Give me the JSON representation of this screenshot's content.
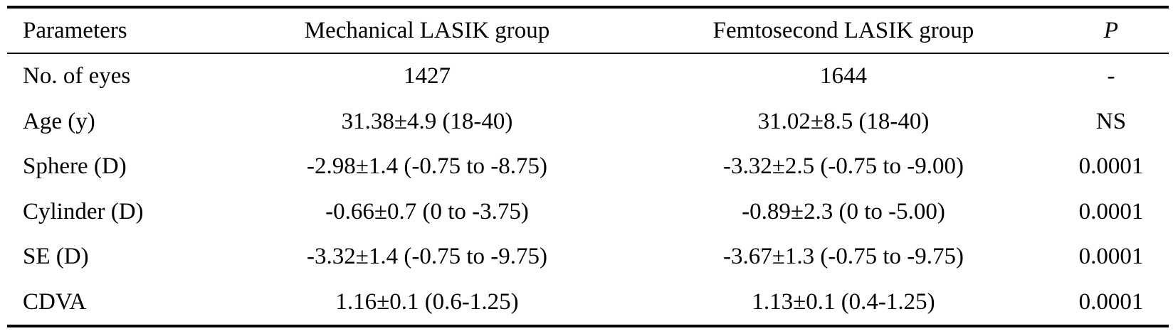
{
  "table": {
    "headers": {
      "parameters": "Parameters",
      "mechanical": "Mechanical LASIK group",
      "femtosecond": "Femtosecond LASIK group",
      "p": "P"
    },
    "rows": [
      {
        "parameter": "No. of eyes",
        "mechanical": "1427",
        "femtosecond": "1644",
        "p": "-"
      },
      {
        "parameter": "Age (y)",
        "mechanical": "31.38±4.9 (18-40)",
        "femtosecond": "31.02±8.5 (18-40)",
        "p": "NS"
      },
      {
        "parameter": "Sphere (D)",
        "mechanical": "-2.98±1.4 (-0.75 to -8.75)",
        "femtosecond": "-3.32±2.5 (-0.75 to -9.00)",
        "p": "0.0001"
      },
      {
        "parameter": "Cylinder (D)",
        "mechanical": "-0.66±0.7 (0 to -3.75)",
        "femtosecond": "-0.89±2.3 (0 to -5.00)",
        "p": "0.0001"
      },
      {
        "parameter": "SE (D)",
        "mechanical": "-3.32±1.4 (-0.75 to -9.75)",
        "femtosecond": "-3.67±1.3 (-0.75 to -9.75)",
        "p": "0.0001"
      },
      {
        "parameter": "CDVA",
        "mechanical": "1.16±0.1 (0.6-1.25)",
        "femtosecond": "1.13±0.1 (0.4-1.25)",
        "p": "0.0001"
      }
    ]
  }
}
